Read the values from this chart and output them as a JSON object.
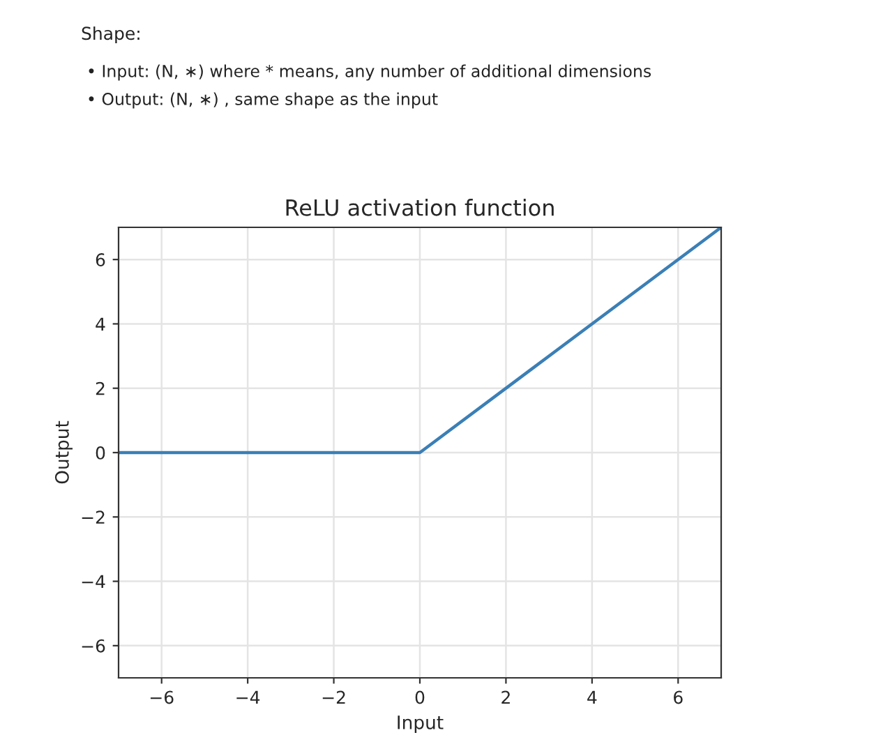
{
  "chart_data": {
    "type": "line",
    "title": "ReLU activation function",
    "xlabel": "Input",
    "ylabel": "Output",
    "annotations": [
      "Shape:",
      "• Input: (N, ∗) where * means, any number of additional dimensions",
      "• Output: (N, ∗) , same shape as the input"
    ],
    "series": [
      {
        "color": "#3b7fb6",
        "x": [
          -7,
          0,
          7
        ],
        "values": [
          0,
          0,
          7
        ]
      }
    ],
    "xlim": [
      -7,
      7
    ],
    "ylim": [
      -7,
      7
    ],
    "xticks": [
      {
        "value": -6,
        "label": "−6"
      },
      {
        "value": -4,
        "label": "−4"
      },
      {
        "value": -2,
        "label": "−2"
      },
      0,
      2,
      4,
      6
    ],
    "yticks": [
      {
        "value": -6,
        "label": "−6"
      },
      {
        "value": -4,
        "label": "−4"
      },
      {
        "value": -2,
        "label": "−2"
      },
      0,
      2,
      4,
      6
    ],
    "grid": true,
    "marker": "none",
    "line_style": "solid"
  }
}
